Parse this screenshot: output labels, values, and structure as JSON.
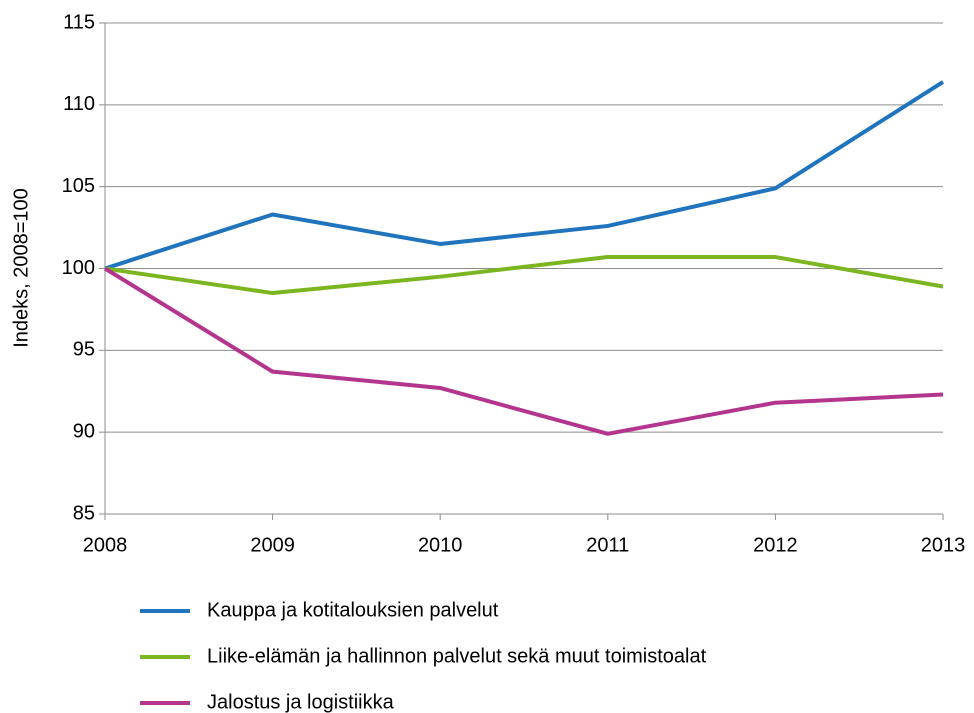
{
  "chart_data": {
    "type": "line",
    "ylabel": "Indeks, 2008=100",
    "x": [
      2008,
      2009,
      2010,
      2011,
      2012,
      2013
    ],
    "xlim": [
      2008,
      2013
    ],
    "xticks": [
      2008,
      2009,
      2010,
      2011,
      2012,
      2013
    ],
    "ylim": [
      85,
      115
    ],
    "yticks": [
      85,
      90,
      95,
      100,
      105,
      110,
      115
    ],
    "grid": true,
    "legend": "bottom",
    "series": [
      {
        "name": "Kauppa ja kotitalouksien palvelut",
        "color": "#1f74bd",
        "values": [
          100,
          103.3,
          101.5,
          102.6,
          104.9,
          111.4
        ]
      },
      {
        "name": "Liike-elämän ja hallinnon palvelut sekä muut toimistoalat",
        "color": "#7bb520",
        "values": [
          100,
          98.5,
          99.5,
          100.7,
          100.7,
          98.9
        ]
      },
      {
        "name": "Jalostus ja logistiikka",
        "color": "#b3358d",
        "values": [
          100,
          93.7,
          92.7,
          89.9,
          91.8,
          92.3
        ]
      }
    ]
  }
}
